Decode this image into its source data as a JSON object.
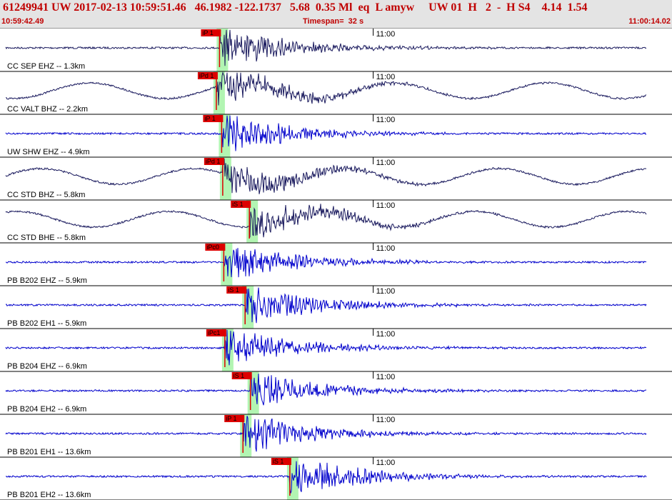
{
  "header": {
    "title": "61249941 UW 2017-02-13 10:59:51.46   46.1982 -122.1737   5.68  0.35 Ml  eq  L amyw     UW 01  H   2  -  H S4    4.14  1.54",
    "start_time": "10:59:42.49",
    "timespan": "Timespan=  32 s",
    "end_time": "11:00:14.02"
  },
  "colors": {
    "trace_blue": "#0000cc",
    "trace_dark": "#1a1a5e",
    "pick_red": "#dd0000",
    "window_green": "#b2f5b2",
    "header_bg": "#e4e4e4",
    "header_text": "#c00000"
  },
  "chart_data": {
    "type": "line",
    "x_unit": "seconds since 10:59:42.49",
    "xlim": [
      0,
      31.53
    ],
    "tick_marks": [
      {
        "t": 17.51,
        "label": "11:00"
      }
    ],
    "channels": [
      {
        "label": "CC SEP EHZ -- 1.3km",
        "color": "dark",
        "long_period": false,
        "picks": [
          {
            "label": "iP 1",
            "t": 10.3
          }
        ]
      },
      {
        "label": "CC VALT BHZ -- 2.2km",
        "color": "dark",
        "long_period": true,
        "picks": [
          {
            "label": "iPd 1",
            "t": 10.15
          }
        ]
      },
      {
        "label": "UW SHW EHZ -- 4.9km",
        "color": "blue",
        "long_period": false,
        "picks": [
          {
            "label": "iP 1",
            "t": 10.4
          }
        ]
      },
      {
        "label": "CC STD BHZ -- 5.8km",
        "color": "dark",
        "long_period": true,
        "picks": [
          {
            "label": "iPd 1",
            "t": 10.45
          }
        ]
      },
      {
        "label": "CC STD BHE -- 5.8km",
        "color": "dark",
        "long_period": true,
        "picks": [
          {
            "label": "iS 1",
            "t": 11.7
          }
        ]
      },
      {
        "label": "PB B202 EHZ -- 5.9km",
        "color": "blue",
        "long_period": false,
        "picks": [
          {
            "label": "iPc0",
            "t": 10.5
          }
        ]
      },
      {
        "label": "PB B202 EH1 -- 5.9km",
        "color": "blue",
        "long_period": false,
        "picks": [
          {
            "label": "iS 1",
            "t": 11.5
          }
        ]
      },
      {
        "label": "PB B204 EHZ -- 6.9km",
        "color": "blue",
        "long_period": false,
        "picks": [
          {
            "label": "iPc1",
            "t": 10.55
          }
        ]
      },
      {
        "label": "PB B204 EH2 -- 6.9km",
        "color": "blue",
        "long_period": false,
        "picks": [
          {
            "label": "iS 1",
            "t": 11.75
          }
        ]
      },
      {
        "label": "PB B201 EH1 -- 13.6km",
        "color": "blue",
        "long_period": false,
        "picks": [
          {
            "label": "iP 1",
            "t": 11.4
          }
        ]
      },
      {
        "label": "PB B201 EH2 -- 13.6km",
        "color": "blue",
        "long_period": false,
        "picks": [
          {
            "label": "iS 1",
            "t": 13.6
          }
        ]
      }
    ]
  }
}
